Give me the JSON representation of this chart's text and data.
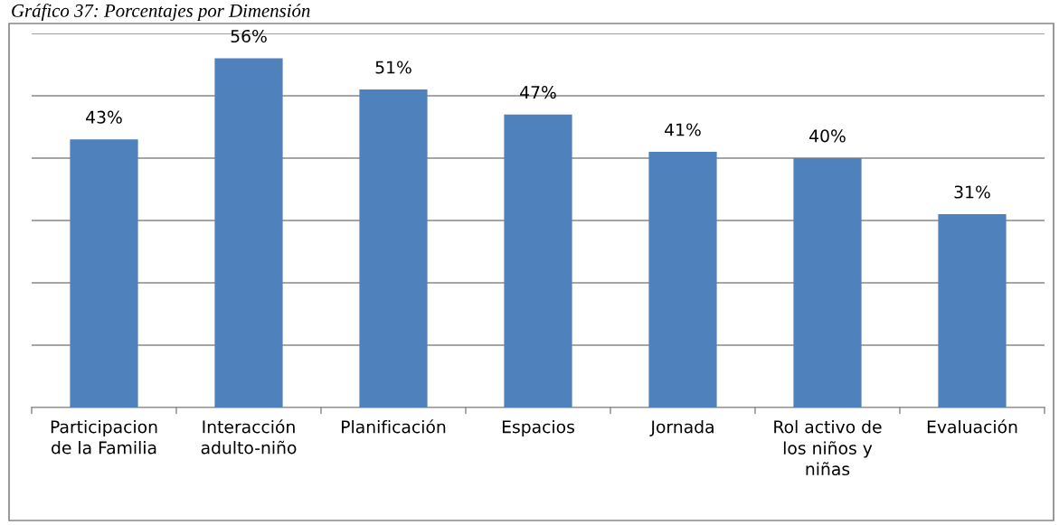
{
  "chart_data": {
    "type": "bar",
    "title": "Gráfico 37: Porcentajes por Dimensión",
    "categories": [
      "Participacion de la Familia",
      "Interacción adulto-niño",
      "Planificación",
      "Espacios",
      "Jornada",
      "Rol activo de los niños y niñas",
      "Evaluación"
    ],
    "values": [
      43,
      56,
      51,
      47,
      41,
      40,
      31
    ],
    "value_labels": [
      "43%",
      "56%",
      "51%",
      "47%",
      "41%",
      "40%",
      "31%"
    ],
    "color": "#4f81bd",
    "ylim": [
      0,
      60
    ],
    "yticks": [
      {
        "value": 0,
        "label": null
      },
      {
        "value": 10,
        "label": null
      },
      {
        "value": 20,
        "label": null
      },
      {
        "value": 30,
        "label": null
      },
      {
        "value": 40,
        "label": null
      },
      {
        "value": 50,
        "label": null
      },
      {
        "value": 60,
        "label": null
      }
    ],
    "grid": "y",
    "tick_labels": "x",
    "legend": false
  }
}
